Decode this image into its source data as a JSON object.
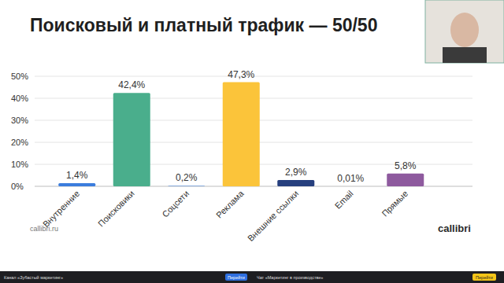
{
  "chart_data": {
    "type": "bar",
    "title": "Поисковый и платный трафик — 50/50",
    "categories": [
      "Внутренние",
      "Поисковики",
      "Соцсети",
      "Реклама",
      "Внешние ссылки",
      "Email",
      "Прямые"
    ],
    "values": [
      1.4,
      42.4,
      0.2,
      47.3,
      2.9,
      0.01,
      5.8
    ],
    "value_labels": [
      "1,4%",
      "42,4%",
      "0,2%",
      "47,3%",
      "2,9%",
      "0,01%",
      "5,8%"
    ],
    "colors": [
      "#3b7ddd",
      "#4aae8c",
      "#3b7ddd",
      "#fbc43a",
      "#263f7e",
      "#3b7ddd",
      "#8e5a9e"
    ],
    "data_labels": true,
    "ylim": [
      0,
      50
    ],
    "yticks": [
      {
        "value": 0,
        "label": "0%"
      },
      {
        "value": 10,
        "label": "10%"
      },
      {
        "value": 20,
        "label": "20%"
      },
      {
        "value": 30,
        "label": "30%"
      },
      {
        "value": 40,
        "label": "40%"
      },
      {
        "value": 50,
        "label": "50%"
      }
    ],
    "grid": true
  },
  "slide": {
    "site": "callibri.ru",
    "logo": "callibri"
  },
  "bottom_bar": {
    "channel": "Канал «Зубастый маркетинг»",
    "channel_button": "Перейти",
    "chat": "Чат «Маркетинг в производстве»",
    "chat_button": "Перейти"
  }
}
